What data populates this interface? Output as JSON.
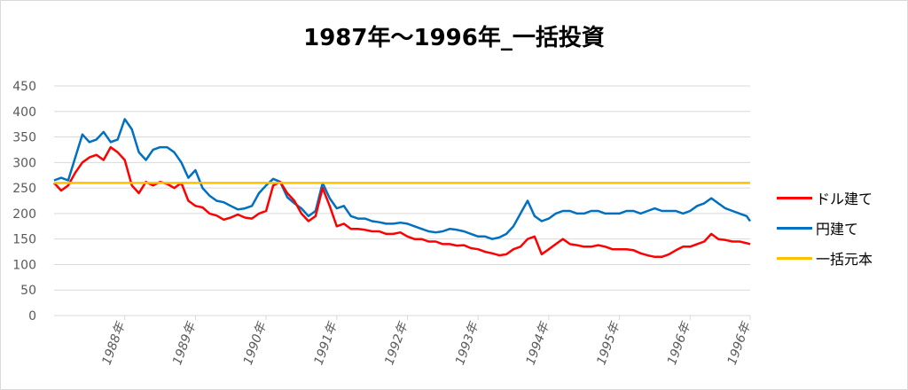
{
  "chart_data": {
    "type": "line",
    "title": "1987年～1996年_一括投資",
    "xlabel": "",
    "ylabel": "",
    "ylim": [
      0,
      450
    ],
    "yticks": [
      0,
      50,
      100,
      150,
      200,
      250,
      300,
      350,
      400,
      450
    ],
    "x_labels": [
      "1988年",
      "1989年",
      "1990年",
      "1991年",
      "1992年",
      "1993年",
      "1994年",
      "1995年",
      "1996年",
      "1996年"
    ],
    "x_label_positions": [
      1988.0,
      1989.0,
      1990.0,
      1991.0,
      1992.0,
      1993.0,
      1994.0,
      1995.0,
      1996.0,
      1996.85
    ],
    "xlim": [
      1987.0,
      1996.85
    ],
    "grid": true,
    "legend_position": "right",
    "series": [
      {
        "name": "ドル建て",
        "color": "#ff0000",
        "x": [
          1987.0,
          1987.1,
          1987.2,
          1987.3,
          1987.4,
          1987.5,
          1987.6,
          1987.7,
          1987.8,
          1987.9,
          1988.0,
          1988.1,
          1988.2,
          1988.3,
          1988.4,
          1988.5,
          1988.6,
          1988.7,
          1988.8,
          1988.9,
          1989.0,
          1989.1,
          1989.2,
          1989.3,
          1989.4,
          1989.5,
          1989.6,
          1989.7,
          1989.8,
          1989.9,
          1990.0,
          1990.1,
          1990.2,
          1990.3,
          1990.4,
          1990.5,
          1990.6,
          1990.7,
          1990.8,
          1990.9,
          1991.0,
          1991.1,
          1991.2,
          1991.3,
          1991.4,
          1991.5,
          1991.6,
          1991.7,
          1991.8,
          1991.9,
          1992.0,
          1992.1,
          1992.2,
          1992.3,
          1992.4,
          1992.5,
          1992.6,
          1992.7,
          1992.8,
          1992.9,
          1993.0,
          1993.1,
          1993.2,
          1993.3,
          1993.4,
          1993.5,
          1993.6,
          1993.7,
          1993.8,
          1993.9,
          1994.0,
          1994.1,
          1994.2,
          1994.3,
          1994.4,
          1994.5,
          1994.6,
          1994.7,
          1994.8,
          1994.9,
          1995.0,
          1995.1,
          1995.2,
          1995.3,
          1995.4,
          1995.5,
          1995.6,
          1995.7,
          1995.8,
          1995.9,
          1996.0,
          1996.1,
          1996.2,
          1996.3,
          1996.4,
          1996.5,
          1996.6,
          1996.7,
          1996.8,
          1996.85
        ],
        "values": [
          260,
          245,
          255,
          280,
          300,
          310,
          315,
          305,
          330,
          320,
          305,
          255,
          240,
          262,
          255,
          262,
          258,
          250,
          260,
          225,
          215,
          212,
          200,
          196,
          188,
          192,
          198,
          192,
          190,
          200,
          205,
          255,
          262,
          240,
          225,
          200,
          185,
          195,
          250,
          215,
          175,
          180,
          170,
          170,
          168,
          165,
          165,
          160,
          160,
          163,
          155,
          150,
          150,
          145,
          145,
          140,
          140,
          137,
          138,
          132,
          130,
          125,
          122,
          118,
          120,
          130,
          135,
          150,
          155,
          120,
          130,
          140,
          150,
          140,
          138,
          135,
          135,
          138,
          135,
          130,
          130,
          130,
          128,
          122,
          118,
          115,
          115,
          120,
          128,
          135,
          135,
          140,
          145,
          160,
          150,
          148,
          145,
          145,
          142,
          140
        ]
      },
      {
        "name": "円建て",
        "color": "#0070c0",
        "x": [
          1987.0,
          1987.1,
          1987.2,
          1987.3,
          1987.4,
          1987.5,
          1987.6,
          1987.7,
          1987.8,
          1987.9,
          1988.0,
          1988.1,
          1988.2,
          1988.3,
          1988.4,
          1988.5,
          1988.6,
          1988.7,
          1988.8,
          1988.9,
          1989.0,
          1989.1,
          1989.2,
          1989.3,
          1989.4,
          1989.5,
          1989.6,
          1989.7,
          1989.8,
          1989.9,
          1990.0,
          1990.1,
          1990.2,
          1990.3,
          1990.4,
          1990.5,
          1990.6,
          1990.7,
          1990.8,
          1990.9,
          1991.0,
          1991.1,
          1991.2,
          1991.3,
          1991.4,
          1991.5,
          1991.6,
          1991.7,
          1991.8,
          1991.9,
          1992.0,
          1992.1,
          1992.2,
          1992.3,
          1992.4,
          1992.5,
          1992.6,
          1992.7,
          1992.8,
          1992.9,
          1993.0,
          1993.1,
          1993.2,
          1993.3,
          1993.4,
          1993.5,
          1993.6,
          1993.7,
          1993.8,
          1993.9,
          1994.0,
          1994.1,
          1994.2,
          1994.3,
          1994.4,
          1994.5,
          1994.6,
          1994.7,
          1994.8,
          1994.9,
          1995.0,
          1995.1,
          1995.2,
          1995.3,
          1995.4,
          1995.5,
          1995.6,
          1995.7,
          1995.8,
          1995.9,
          1996.0,
          1996.1,
          1996.2,
          1996.3,
          1996.4,
          1996.5,
          1996.6,
          1996.7,
          1996.8,
          1996.85
        ],
        "values": [
          265,
          270,
          265,
          310,
          355,
          340,
          345,
          360,
          340,
          345,
          385,
          365,
          320,
          305,
          325,
          330,
          330,
          320,
          300,
          270,
          285,
          250,
          235,
          225,
          222,
          215,
          208,
          210,
          215,
          240,
          255,
          268,
          262,
          232,
          220,
          210,
          195,
          205,
          260,
          230,
          210,
          215,
          195,
          190,
          190,
          185,
          183,
          180,
          180,
          182,
          180,
          175,
          170,
          165,
          163,
          165,
          170,
          168,
          165,
          160,
          155,
          155,
          150,
          153,
          160,
          175,
          200,
          225,
          195,
          185,
          190,
          200,
          205,
          205,
          200,
          200,
          205,
          205,
          200,
          200,
          200,
          205,
          205,
          200,
          205,
          210,
          205,
          205,
          205,
          200,
          205,
          215,
          220,
          230,
          220,
          210,
          205,
          200,
          195,
          185
        ]
      },
      {
        "name": "一括元本",
        "color": "#ffc000",
        "x": [
          1987.0,
          1996.85
        ],
        "values": [
          260,
          260
        ]
      }
    ]
  }
}
